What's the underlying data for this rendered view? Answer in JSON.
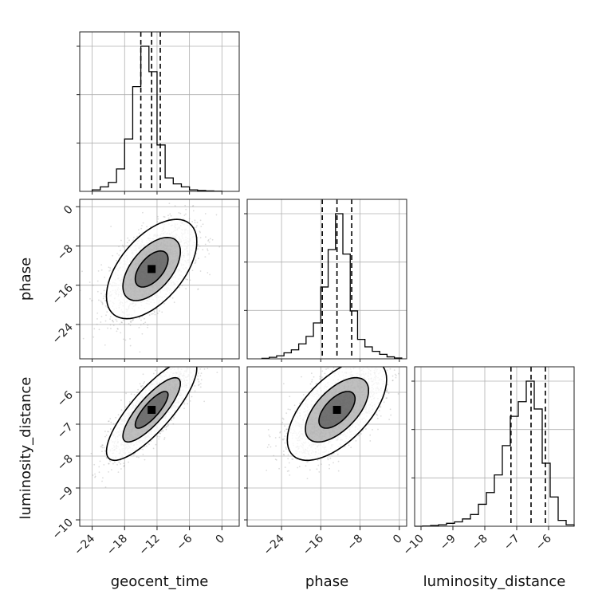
{
  "chart_data": {
    "type": "corner",
    "parameters": [
      "geocent_time",
      "phase",
      "luminosity_distance"
    ],
    "axis_labels": {
      "geocent_time": "geocent_time",
      "phase": "phase",
      "luminosity_distance": "luminosity_distance"
    },
    "ranges": {
      "geocent_time": [
        -26.3,
        3.2
      ],
      "phase": [
        -31.0,
        1.5
      ],
      "luminosity_distance": [
        -10.2,
        -5.2
      ]
    },
    "ticks": {
      "geocent_time": [
        -24,
        -18,
        -12,
        -6,
        0
      ],
      "phase_x": [
        -24,
        -16,
        -8,
        0
      ],
      "phase_y": [
        0,
        -8,
        -16,
        -24
      ],
      "luminosity_distance_x": [
        -10,
        -9,
        -8,
        -7,
        -6
      ],
      "luminosity_distance_y": [
        -6,
        -7,
        -8,
        -9,
        -10
      ]
    },
    "grid": true,
    "quantiles": {
      "geocent_time": [
        -15.0,
        -13.0,
        -11.4
      ],
      "phase": [
        -15.7,
        -12.7,
        -9.7
      ],
      "luminosity_distance": [
        -7.18,
        -6.55,
        -6.1
      ]
    },
    "histograms": {
      "geocent_time": {
        "edges": [
          -24,
          -22.5,
          -21,
          -19.5,
          -18,
          -16.5,
          -15,
          -13.5,
          -12,
          -10.5,
          -9,
          -7.5,
          -6,
          -4.5,
          -3,
          -1.5,
          0
        ],
        "counts": [
          1,
          3,
          6,
          15,
          35,
          70,
          97,
          80,
          31,
          9,
          5,
          3,
          1,
          0.6,
          0.3,
          0.1
        ]
      },
      "phase": {
        "edges": [
          -28,
          -26.5,
          -25,
          -23.5,
          -22,
          -20.5,
          -19,
          -17.5,
          -16,
          -14.5,
          -13,
          -11.5,
          -10,
          -8.5,
          -7,
          -5.5,
          -4,
          -2.5,
          -1,
          0.5
        ],
        "counts": [
          0.3,
          1,
          2,
          4,
          6,
          10,
          15,
          24,
          48,
          73,
          97,
          70,
          32,
          13,
          8,
          5,
          3,
          1.3,
          0.5
        ]
      },
      "luminosity_distance": {
        "edges": [
          -10.2,
          -9.95,
          -9.7,
          -9.45,
          -9.2,
          -8.95,
          -8.7,
          -8.45,
          -8.2,
          -7.95,
          -7.7,
          -7.45,
          -7.2,
          -6.95,
          -6.7,
          -6.45,
          -6.2,
          -5.95,
          -5.7,
          -5.45,
          -5.2
        ],
        "counts": [
          0,
          0.2,
          0.5,
          1,
          2,
          3,
          5,
          8,
          15,
          23,
          35,
          55,
          75,
          85,
          99,
          80,
          43,
          20,
          4,
          1
        ]
      }
    },
    "pairs": [
      {
        "x": "geocent_time",
        "y": "phase",
        "mean": [
          -13.0,
          -12.7
        ],
        "sd": [
          3.8,
          4.6
        ],
        "rho": 0.55,
        "contours": [
          [
            0.8,
            0.3
          ],
          [
            1.4,
            0.55
          ],
          [
            2.2,
            0.85
          ]
        ]
      },
      {
        "x": "geocent_time",
        "y": "luminosity_distance",
        "mean": [
          -13.0,
          -6.55
        ],
        "sd": [
          3.8,
          0.72
        ],
        "rho": 0.82,
        "contours": [
          [
            0.8,
            0.3
          ],
          [
            1.4,
            0.55
          ],
          [
            2.2,
            0.85
          ]
        ]
      },
      {
        "x": "phase",
        "y": "luminosity_distance",
        "mean": [
          -12.7,
          -6.55
        ],
        "sd": [
          4.6,
          0.72
        ],
        "rho": 0.6,
        "contours": [
          [
            0.8,
            0.3
          ],
          [
            1.4,
            0.55
          ],
          [
            2.2,
            0.85
          ]
        ]
      }
    ],
    "colors": {
      "line": "#000000",
      "scatter": "#9a9a9a",
      "contour_fill_inner": "#333333",
      "contour_fill_mid": "#8a8a8a",
      "contour_fill_outer": "#c8c8c8",
      "grid": "#b0b0b0"
    }
  }
}
